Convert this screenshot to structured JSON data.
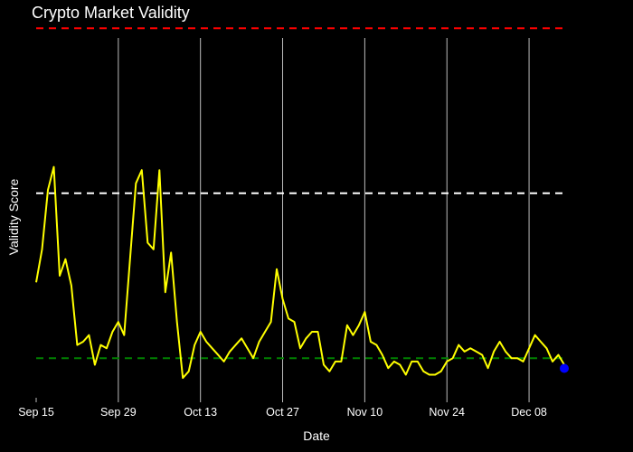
{
  "chart_data": {
    "type": "line",
    "title": "Crypto Market Validity",
    "xlabel": "Date",
    "ylabel": "Validity Score",
    "x_start": "2023-09-15",
    "x_end": "2023-12-14",
    "xlim": [
      "2023-09-15",
      "2023-12-14"
    ],
    "ylim": [
      -0.12,
      1.02
    ],
    "x_ticks": [
      {
        "date": "2023-09-15",
        "label": "Sep 15"
      },
      {
        "date": "2023-09-29",
        "label": "Sep 29"
      },
      {
        "date": "2023-10-13",
        "label": "Oct 13"
      },
      {
        "date": "2023-10-27",
        "label": "Oct 27"
      },
      {
        "date": "2023-11-10",
        "label": "Nov 10"
      },
      {
        "date": "2023-11-24",
        "label": "Nov 24"
      },
      {
        "date": "2023-12-08",
        "label": "Dec 08"
      }
    ],
    "grid": {
      "x": true,
      "y": false
    },
    "reference_lines": [
      {
        "y": 1.0,
        "color": "#ff0000",
        "style": "dashed"
      },
      {
        "y": 0.5,
        "color": "#ffffff",
        "style": "dashed"
      },
      {
        "y": 0.0,
        "color": "#008000",
        "style": "dashed"
      }
    ],
    "series": [
      {
        "color": "#ffff00",
        "values": [
          0.23,
          0.33,
          0.51,
          0.58,
          0.25,
          0.3,
          0.22,
          0.04,
          0.05,
          0.07,
          -0.02,
          0.04,
          0.03,
          0.08,
          0.11,
          0.07,
          0.3,
          0.53,
          0.57,
          0.35,
          0.33,
          0.57,
          0.2,
          0.32,
          0.11,
          -0.06,
          -0.04,
          0.04,
          0.08,
          0.05,
          0.03,
          0.01,
          -0.01,
          0.02,
          0.04,
          0.06,
          0.03,
          0.0,
          0.05,
          0.08,
          0.11,
          0.27,
          0.18,
          0.12,
          0.11,
          0.03,
          0.06,
          0.08,
          0.08,
          -0.02,
          -0.04,
          -0.01,
          -0.01,
          0.1,
          0.07,
          0.1,
          0.14,
          0.05,
          0.04,
          0.01,
          -0.03,
          -0.01,
          -0.02,
          -0.05,
          -0.01,
          -0.01,
          -0.04,
          -0.05,
          -0.05,
          -0.04,
          -0.01,
          0.0,
          0.04,
          0.02,
          0.03,
          0.02,
          0.01,
          -0.03,
          0.02,
          0.05,
          0.02,
          0.0,
          0.0,
          -0.01,
          0.03,
          0.07,
          0.05,
          0.03,
          -0.01,
          0.01,
          -0.02
        ],
        "last_point_marker": {
          "color": "#0000ff"
        }
      }
    ]
  }
}
